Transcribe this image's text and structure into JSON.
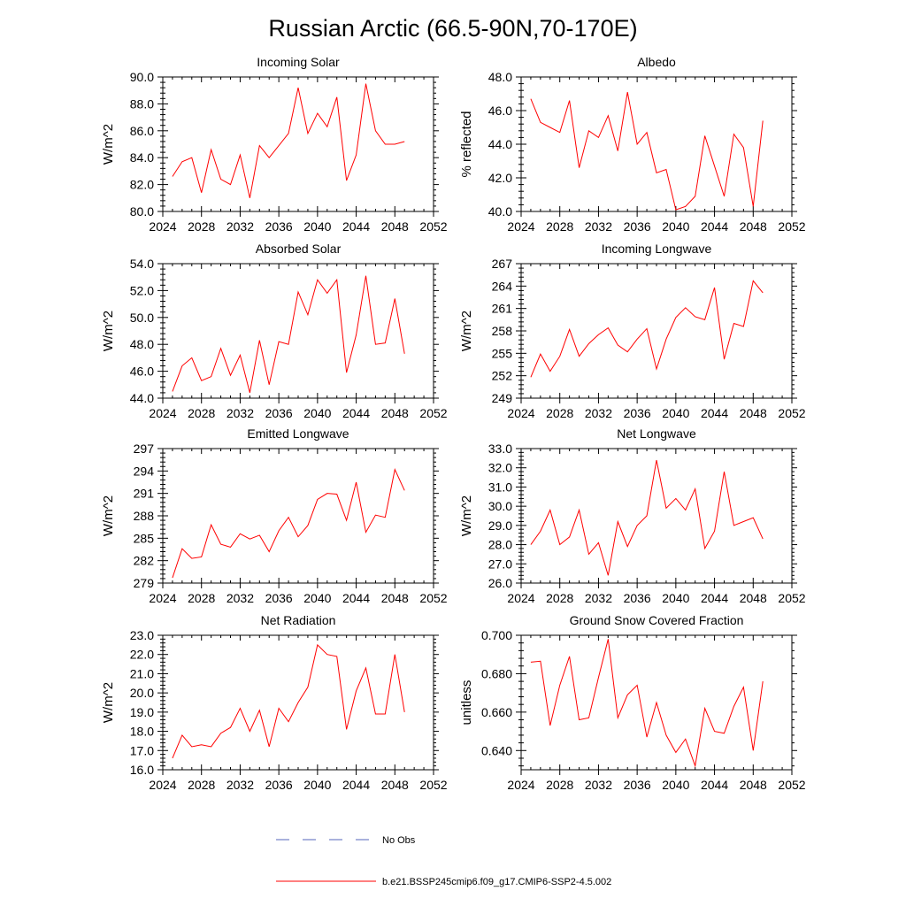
{
  "figure": {
    "title": "Russian Arctic (66.5-90N,70-170E)"
  },
  "legend": [
    {
      "label": "No Obs",
      "color": "#5566bb",
      "style": "dashed"
    },
    {
      "label": "b.e21.BSSP245cmip6.f09_g17.CMIP6-SSP2-4.5.002",
      "color": "#ff0000",
      "style": "solid"
    }
  ],
  "chart_data": [
    {
      "type": "line",
      "title": "Incoming Solar",
      "xlabel": "",
      "ylabel": "W/m^2",
      "xlim": [
        2024,
        2052
      ],
      "xticks": [
        2024,
        2028,
        2032,
        2036,
        2040,
        2044,
        2048,
        2052
      ],
      "xtick_labels": [
        "2024",
        "2028",
        "2032",
        "2036",
        "2040",
        "2044",
        "2048",
        "2052"
      ],
      "ylim": [
        80,
        90
      ],
      "yticks": [
        80,
        82,
        84,
        86,
        88,
        90
      ],
      "ytick_labels": [
        "80.0",
        "82.0",
        "84.0",
        "86.0",
        "88.0",
        "90.0"
      ],
      "series": [
        {
          "name": "b.e21.BSSP245cmip6.f09_g17.CMIP6-SSP2-4.5.002",
          "color": "#ff0000",
          "x": [
            2025,
            2026,
            2027,
            2028,
            2029,
            2030,
            2031,
            2032,
            2033,
            2034,
            2035,
            2036,
            2037,
            2038,
            2039,
            2040,
            2041,
            2042,
            2043,
            2044,
            2045,
            2046,
            2047,
            2048,
            2049
          ],
          "values": [
            82.6,
            83.7,
            84.0,
            81.4,
            84.6,
            82.4,
            82.0,
            84.2,
            81.0,
            84.9,
            84.0,
            84.9,
            85.8,
            89.2,
            85.8,
            87.3,
            86.3,
            88.5,
            82.3,
            84.2,
            89.5,
            86.0,
            85.0,
            85.0,
            85.2
          ]
        }
      ]
    },
    {
      "type": "line",
      "title": "Albedo",
      "xlabel": "",
      "ylabel": "% reflected",
      "xlim": [
        2024,
        2052
      ],
      "xticks": [
        2024,
        2028,
        2032,
        2036,
        2040,
        2044,
        2048,
        2052
      ],
      "xtick_labels": [
        "2024",
        "2028",
        "2032",
        "2036",
        "2040",
        "2044",
        "2048",
        "2052"
      ],
      "ylim": [
        40,
        48
      ],
      "yticks": [
        40,
        42,
        44,
        46,
        48
      ],
      "ytick_labels": [
        "40.0",
        "42.0",
        "44.0",
        "46.0",
        "48.0"
      ],
      "series": [
        {
          "name": "b.e21.BSSP245cmip6.f09_g17.CMIP6-SSP2-4.5.002",
          "color": "#ff0000",
          "x": [
            2025,
            2026,
            2027,
            2028,
            2029,
            2030,
            2031,
            2032,
            2033,
            2034,
            2035,
            2036,
            2037,
            2038,
            2039,
            2040,
            2041,
            2042,
            2043,
            2044,
            2045,
            2046,
            2047,
            2048,
            2049
          ],
          "values": [
            46.7,
            45.3,
            45.0,
            44.7,
            46.6,
            42.6,
            44.8,
            44.4,
            45.7,
            43.6,
            47.1,
            44.0,
            44.7,
            42.3,
            42.5,
            40.1,
            40.3,
            40.9,
            44.5,
            42.7,
            40.9,
            44.6,
            43.8,
            40.3,
            45.4
          ]
        }
      ]
    },
    {
      "type": "line",
      "title": "Absorbed Solar",
      "xlabel": "",
      "ylabel": "W/m^2",
      "xlim": [
        2024,
        2052
      ],
      "xticks": [
        2024,
        2028,
        2032,
        2036,
        2040,
        2044,
        2048,
        2052
      ],
      "xtick_labels": [
        "2024",
        "2028",
        "2032",
        "2036",
        "2040",
        "2044",
        "2048",
        "2052"
      ],
      "ylim": [
        44,
        54
      ],
      "yticks": [
        44,
        46,
        48,
        50,
        52,
        54
      ],
      "ytick_labels": [
        "44.0",
        "46.0",
        "48.0",
        "50.0",
        "52.0",
        "54.0"
      ],
      "series": [
        {
          "name": "b.e21.BSSP245cmip6.f09_g17.CMIP6-SSP2-4.5.002",
          "color": "#ff0000",
          "x": [
            2025,
            2026,
            2027,
            2028,
            2029,
            2030,
            2031,
            2032,
            2033,
            2034,
            2035,
            2036,
            2037,
            2038,
            2039,
            2040,
            2041,
            2042,
            2043,
            2044,
            2045,
            2046,
            2047,
            2048,
            2049
          ],
          "values": [
            44.5,
            46.4,
            47.0,
            45.3,
            45.6,
            47.7,
            45.7,
            47.2,
            44.4,
            48.3,
            45.0,
            48.2,
            48.0,
            51.9,
            50.2,
            52.8,
            51.8,
            52.8,
            45.9,
            48.7,
            53.1,
            48.0,
            48.1,
            51.4,
            47.3
          ]
        }
      ]
    },
    {
      "type": "line",
      "title": "Incoming Longwave",
      "xlabel": "",
      "ylabel": "W/m^2",
      "xlim": [
        2024,
        2052
      ],
      "xticks": [
        2024,
        2028,
        2032,
        2036,
        2040,
        2044,
        2048,
        2052
      ],
      "xtick_labels": [
        "2024",
        "2028",
        "2032",
        "2036",
        "2040",
        "2044",
        "2048",
        "2052"
      ],
      "ylim": [
        249,
        267
      ],
      "yticks": [
        249,
        252,
        255,
        258,
        261,
        264,
        267
      ],
      "ytick_labels": [
        "249",
        "252",
        "255",
        "258",
        "261",
        "264",
        "267"
      ],
      "series": [
        {
          "name": "b.e21.BSSP245cmip6.f09_g17.CMIP6-SSP2-4.5.002",
          "color": "#ff0000",
          "x": [
            2025,
            2026,
            2027,
            2028,
            2029,
            2030,
            2031,
            2032,
            2033,
            2034,
            2035,
            2036,
            2037,
            2038,
            2039,
            2040,
            2041,
            2042,
            2043,
            2044,
            2045,
            2046,
            2047,
            2048,
            2049
          ],
          "values": [
            251.8,
            254.9,
            252.6,
            254.6,
            258.2,
            254.6,
            256.3,
            257.5,
            258.4,
            256.1,
            255.2,
            256.9,
            258.3,
            252.9,
            256.9,
            259.8,
            261.1,
            259.9,
            259.5,
            263.8,
            254.2,
            259.0,
            258.6,
            264.7,
            263.1
          ]
        }
      ]
    },
    {
      "type": "line",
      "title": "Emitted Longwave",
      "xlabel": "",
      "ylabel": "W/m^2",
      "xlim": [
        2024,
        2052
      ],
      "xticks": [
        2024,
        2028,
        2032,
        2036,
        2040,
        2044,
        2048,
        2052
      ],
      "xtick_labels": [
        "2024",
        "2028",
        "2032",
        "2036",
        "2040",
        "2044",
        "2048",
        "2052"
      ],
      "ylim": [
        279,
        297
      ],
      "yticks": [
        279,
        282,
        285,
        288,
        291,
        294,
        297
      ],
      "ytick_labels": [
        "279",
        "282",
        "285",
        "288",
        "291",
        "294",
        "297"
      ],
      "series": [
        {
          "name": "b.e21.BSSP245cmip6.f09_g17.CMIP6-SSP2-4.5.002",
          "color": "#ff0000",
          "x": [
            2025,
            2026,
            2027,
            2028,
            2029,
            2030,
            2031,
            2032,
            2033,
            2034,
            2035,
            2036,
            2037,
            2038,
            2039,
            2040,
            2041,
            2042,
            2043,
            2044,
            2045,
            2046,
            2047,
            2048,
            2049
          ],
          "values": [
            279.7,
            283.6,
            282.3,
            282.5,
            286.8,
            284.2,
            283.8,
            285.6,
            284.9,
            285.4,
            283.2,
            286.0,
            287.8,
            285.2,
            286.7,
            290.2,
            291.0,
            290.9,
            287.4,
            292.5,
            285.8,
            288.1,
            287.8,
            294.2,
            291.4
          ]
        }
      ]
    },
    {
      "type": "line",
      "title": "Net Longwave",
      "xlabel": "",
      "ylabel": "W/m^2",
      "xlim": [
        2024,
        2052
      ],
      "xticks": [
        2024,
        2028,
        2032,
        2036,
        2040,
        2044,
        2048,
        2052
      ],
      "xtick_labels": [
        "2024",
        "2028",
        "2032",
        "2036",
        "2040",
        "2044",
        "2048",
        "2052"
      ],
      "ylim": [
        26,
        33
      ],
      "yticks": [
        26,
        27,
        28,
        29,
        30,
        31,
        32,
        33
      ],
      "ytick_labels": [
        "26.0",
        "27.0",
        "28.0",
        "29.0",
        "30.0",
        "31.0",
        "32.0",
        "33.0"
      ],
      "series": [
        {
          "name": "b.e21.BSSP245cmip6.f09_g17.CMIP6-SSP2-4.5.002",
          "color": "#ff0000",
          "x": [
            2025,
            2026,
            2027,
            2028,
            2029,
            2030,
            2031,
            2032,
            2033,
            2034,
            2035,
            2036,
            2037,
            2038,
            2039,
            2040,
            2041,
            2042,
            2043,
            2044,
            2045,
            2046,
            2047,
            2048,
            2049
          ],
          "values": [
            28.0,
            28.7,
            29.8,
            28.0,
            28.4,
            29.8,
            27.5,
            28.1,
            26.4,
            29.2,
            27.9,
            29.0,
            29.5,
            32.4,
            29.9,
            30.4,
            29.8,
            30.9,
            27.8,
            28.7,
            31.8,
            29.0,
            29.2,
            29.4,
            28.3
          ]
        }
      ]
    },
    {
      "type": "line",
      "title": "Net Radiation",
      "xlabel": "",
      "ylabel": "W/m^2",
      "xlim": [
        2024,
        2052
      ],
      "xticks": [
        2024,
        2028,
        2032,
        2036,
        2040,
        2044,
        2048,
        2052
      ],
      "xtick_labels": [
        "2024",
        "2028",
        "2032",
        "2036",
        "2040",
        "2044",
        "2048",
        "2052"
      ],
      "ylim": [
        16,
        23
      ],
      "yticks": [
        16,
        17,
        18,
        19,
        20,
        21,
        22,
        23
      ],
      "ytick_labels": [
        "16.0",
        "17.0",
        "18.0",
        "19.0",
        "20.0",
        "21.0",
        "22.0",
        "23.0"
      ],
      "series": [
        {
          "name": "b.e21.BSSP245cmip6.f09_g17.CMIP6-SSP2-4.5.002",
          "color": "#ff0000",
          "x": [
            2025,
            2026,
            2027,
            2028,
            2029,
            2030,
            2031,
            2032,
            2033,
            2034,
            2035,
            2036,
            2037,
            2038,
            2039,
            2040,
            2041,
            2042,
            2043,
            2044,
            2045,
            2046,
            2047,
            2048,
            2049
          ],
          "values": [
            16.6,
            17.8,
            17.2,
            17.3,
            17.2,
            17.9,
            18.2,
            19.2,
            18.0,
            19.1,
            17.2,
            19.2,
            18.5,
            19.5,
            20.3,
            22.5,
            22.0,
            21.9,
            18.1,
            20.1,
            21.3,
            18.9,
            18.9,
            22.0,
            19.0
          ]
        }
      ]
    },
    {
      "type": "line",
      "title": "Ground Snow Covered Fraction",
      "xlabel": "",
      "ylabel": "unitless",
      "xlim": [
        2024,
        2052
      ],
      "xticks": [
        2024,
        2028,
        2032,
        2036,
        2040,
        2044,
        2048,
        2052
      ],
      "xtick_labels": [
        "2024",
        "2028",
        "2032",
        "2036",
        "2040",
        "2044",
        "2048",
        "2052"
      ],
      "ylim": [
        0.63,
        0.7
      ],
      "yticks": [
        0.64,
        0.66,
        0.68,
        0.7
      ],
      "ytick_labels": [
        "0.640",
        "0.660",
        "0.680",
        "0.700"
      ],
      "series": [
        {
          "name": "b.e21.BSSP245cmip6.f09_g17.CMIP6-SSP2-4.5.002",
          "color": "#ff0000",
          "x": [
            2025,
            2026,
            2027,
            2028,
            2029,
            2030,
            2031,
            2032,
            2033,
            2034,
            2035,
            2036,
            2037,
            2038,
            2039,
            2040,
            2041,
            2042,
            2043,
            2044,
            2045,
            2046,
            2047,
            2048,
            2049
          ],
          "values": [
            0.686,
            0.6865,
            0.653,
            0.674,
            0.689,
            0.656,
            0.657,
            0.678,
            0.698,
            0.657,
            0.669,
            0.674,
            0.647,
            0.665,
            0.648,
            0.639,
            0.646,
            0.632,
            0.662,
            0.65,
            0.649,
            0.663,
            0.673,
            0.64,
            0.676
          ]
        }
      ]
    }
  ]
}
